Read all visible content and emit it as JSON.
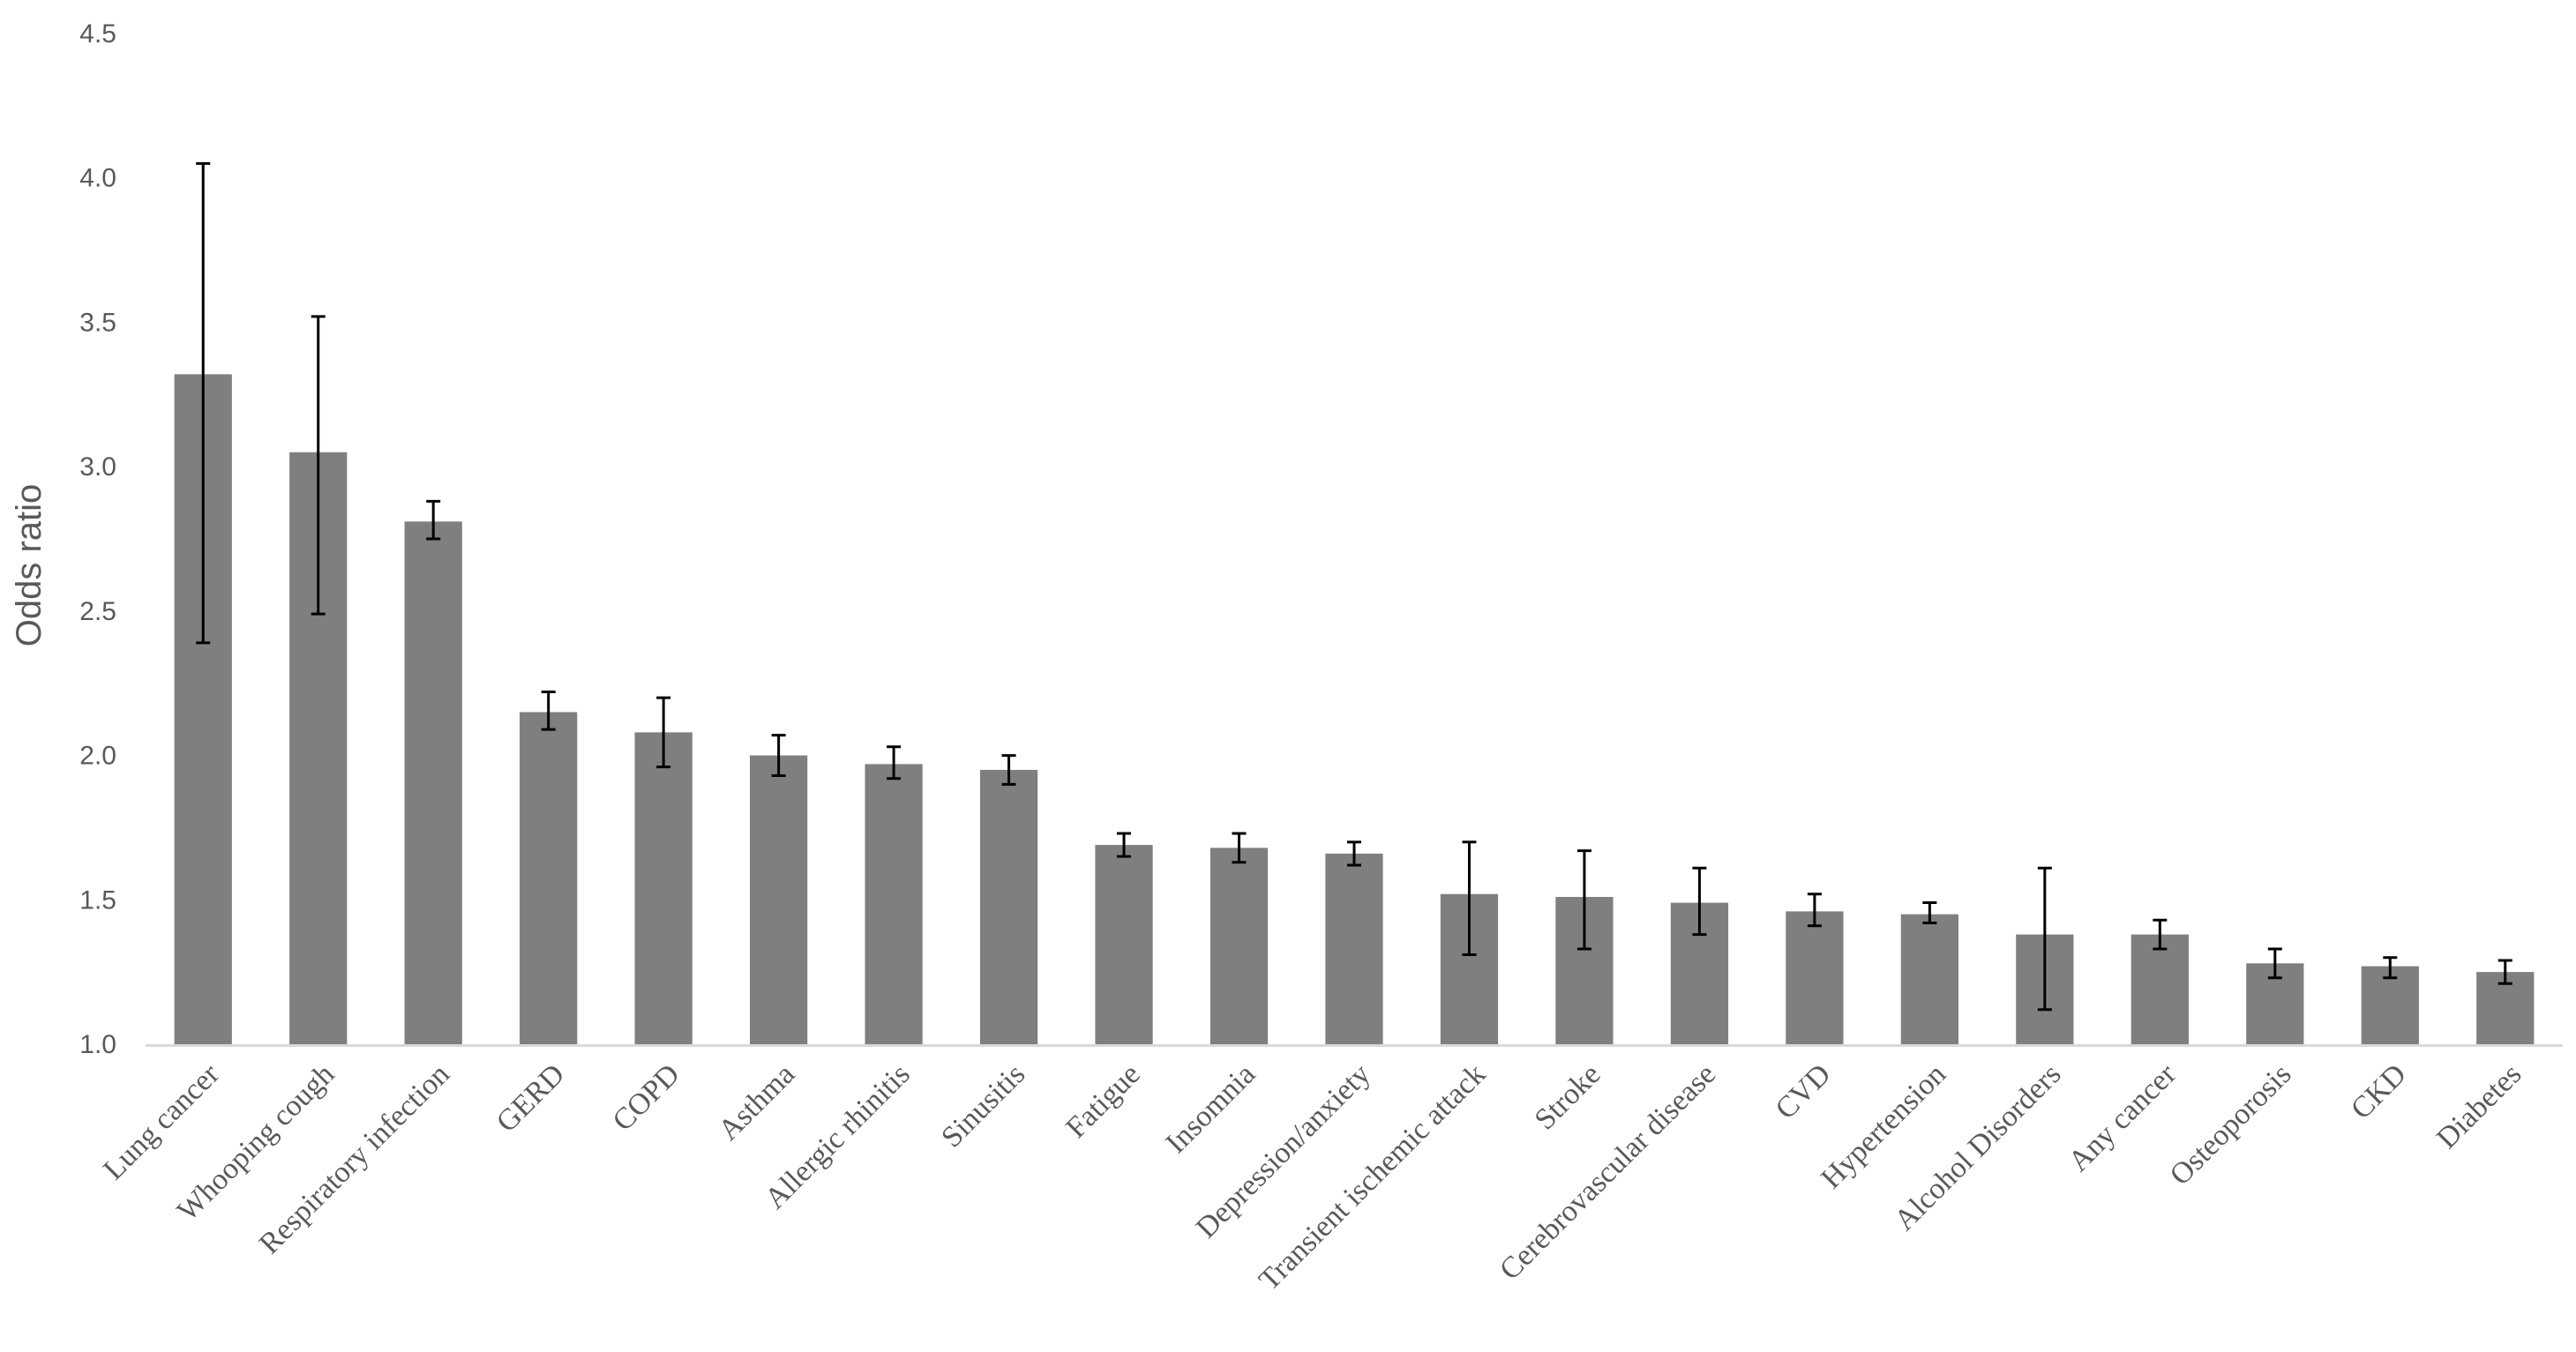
{
  "chart_data": {
    "type": "bar",
    "ylabel": "Odds ratio",
    "xlabel": "",
    "ylim": [
      1.0,
      4.5
    ],
    "yticks": [
      "1.0",
      "1.5",
      "2.0",
      "2.5",
      "3.0",
      "3.5",
      "4.0",
      "4.5"
    ],
    "grid": false,
    "legend": "none",
    "bar_color": "#7f7f7f",
    "error_color": "#000000",
    "categories": [
      "Lung cancer",
      "Whooping cough",
      "Respiratory infection",
      "GERD",
      "COPD",
      "Asthma",
      "Allergic rhinitis",
      "Sinusitis",
      "Fatigue",
      "Insomnia",
      "Depression/anxiety",
      "Transient ischemic attack",
      "Stroke",
      "Cerebrovascular disease",
      "CVD",
      "Hypertension",
      "Alcohol Disorders",
      "Any cancer",
      "Osteoporosis",
      "CKD",
      "Diabetes"
    ],
    "values": [
      3.32,
      3.05,
      2.81,
      2.15,
      2.08,
      2.0,
      1.97,
      1.95,
      1.69,
      1.68,
      1.66,
      1.52,
      1.51,
      1.49,
      1.46,
      1.45,
      1.38,
      1.38,
      1.28,
      1.27,
      1.25
    ],
    "ci_lower": [
      2.39,
      2.49,
      2.75,
      2.09,
      1.96,
      1.93,
      1.92,
      1.9,
      1.65,
      1.63,
      1.62,
      1.31,
      1.33,
      1.38,
      1.41,
      1.42,
      1.12,
      1.33,
      1.23,
      1.23,
      1.21
    ],
    "ci_upper": [
      4.05,
      3.52,
      2.88,
      2.22,
      2.2,
      2.07,
      2.03,
      2.0,
      1.73,
      1.73,
      1.7,
      1.7,
      1.67,
      1.61,
      1.52,
      1.49,
      1.61,
      1.43,
      1.33,
      1.3,
      1.29
    ]
  }
}
